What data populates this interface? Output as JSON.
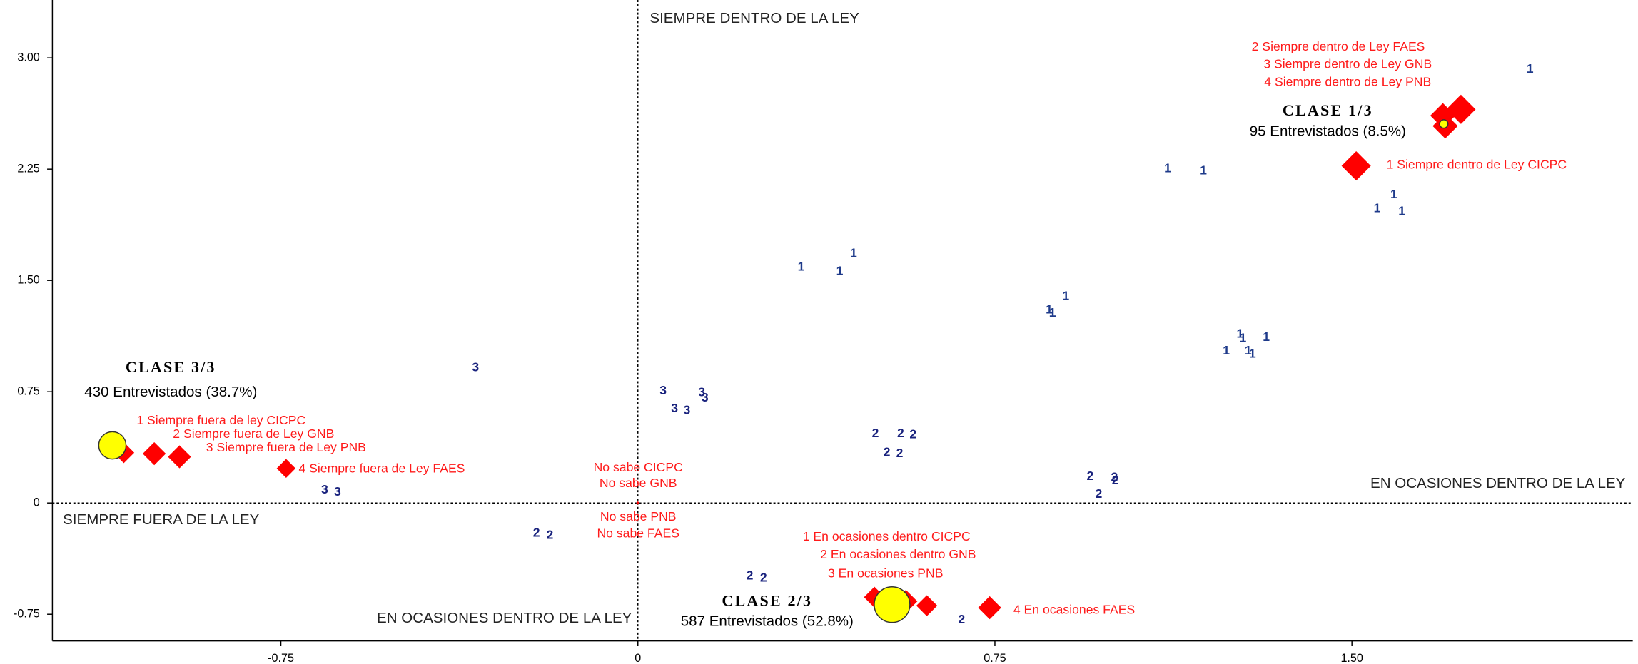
{
  "chart_data": {
    "type": "scatter",
    "xlim": [
      -1.23,
      2.09
    ],
    "ylim": [
      -0.93,
      3.39
    ],
    "xticks": [
      {
        "value": -0.75,
        "label": "-0.75"
      },
      0,
      {
        "value": 0.75,
        "label": "0.75"
      },
      {
        "value": 1.5,
        "label": "1.50"
      }
    ],
    "yticks": [
      {
        "value": -0.75,
        "label": "-0.75"
      },
      0,
      {
        "value": 0.75,
        "label": "0.75"
      },
      {
        "value": 1.5,
        "label": "1.50"
      },
      {
        "value": 2.25,
        "label": "2.25"
      },
      {
        "value": 3,
        "label": "3.00"
      }
    ],
    "quadrant_labels": [
      "SIEMPRE DENTRO DE LA LEY",
      "EN OCASIONES DENTRO DE LA LEY",
      "SIEMPRE FUERA DE LA LEY",
      "EN OCASIONES DENTRO DE LA LEY"
    ],
    "series": [
      {
        "name": "1",
        "color": "#1e3a8a",
        "x": [
          1.874,
          1.113,
          1.188,
          1.588,
          1.553,
          1.605,
          0.453,
          0.343,
          0.424,
          0.899,
          0.864,
          0.871,
          1.265,
          1.271,
          1.32,
          1.236,
          1.282,
          1.291
        ],
        "y": [
          2.922,
          2.251,
          2.237,
          2.075,
          1.983,
          1.962,
          1.68,
          1.588,
          1.56,
          1.39,
          1.299,
          1.277,
          1.136,
          1.108,
          1.115,
          1.023,
          1.023,
          1.002
        ]
      },
      {
        "name": "2",
        "color": "#1a237e",
        "x": [
          0.499,
          0.552,
          0.578,
          0.523,
          0.55,
          0.95,
          1.001,
          1.003,
          0.968,
          -0.213,
          -0.185,
          0.235,
          0.264,
          0.68
        ],
        "y": [
          0.466,
          0.466,
          0.459,
          0.339,
          0.332,
          0.176,
          0.169,
          0.148,
          0.056,
          -0.205,
          -0.219,
          -0.494,
          -0.508,
          -0.79
        ]
      },
      {
        "name": "3",
        "color": "#1a237e",
        "x": [
          -0.341,
          0.053,
          0.134,
          0.141,
          0.077,
          0.103,
          -0.658,
          -0.631
        ],
        "y": [
          0.91,
          0.755,
          0.741,
          0.706,
          0.635,
          0.621,
          0.085,
          0.071
        ]
      }
    ],
    "modalities": [
      {
        "label": "1 Siempre dentro de Ley CICPC",
        "x": 1.509,
        "y": 2.272
      },
      {
        "label": "2 Siempre dentro de Ley FAES",
        "x": 1.691,
        "y": 2.611
      },
      {
        "label": "3 Siempre dentro de Ley GNB",
        "x": 1.729,
        "y": 2.653
      },
      {
        "label": "4 Siempre dentro de Ley PNB",
        "x": 1.696,
        "y": 2.541
      },
      {
        "label": "1 Siempre fuera de ley CICPC",
        "x": -1.08,
        "y": 0.339
      },
      {
        "label": "2 Siempre fuera de Ley GNB",
        "x": -1.016,
        "y": 0.332
      },
      {
        "label": "3 Siempre fuera de Ley PNB",
        "x": -0.963,
        "y": 0.311
      },
      {
        "label": "4 Siempre fuera de Ley FAES",
        "x": -0.739,
        "y": 0.233
      },
      {
        "label": "No sabe CICPC",
        "x": 0,
        "y": 0
      },
      {
        "label": "No sabe GNB",
        "x": 0,
        "y": 0
      },
      {
        "label": "No sabe PNB",
        "x": 0,
        "y": 0
      },
      {
        "label": "No sabe FAES",
        "x": 0,
        "y": 0
      },
      {
        "label": "1 En ocasiones dentro CICPC",
        "x": 0.497,
        "y": -0.635
      },
      {
        "label": "2 En ocasiones dentro GNB",
        "x": 0.563,
        "y": -0.663
      },
      {
        "label": "3 En ocasiones PNB",
        "x": 0.607,
        "y": -0.692
      },
      {
        "label": "4 En ocasiones FAES",
        "x": 0.739,
        "y": -0.706
      }
    ],
    "classes": [
      {
        "name": "CLASE 1/3",
        "count": "95 Entrevistados (8.5%)",
        "x": 1.693,
        "y": 2.555
      },
      {
        "name": "CLASE 2/3",
        "count": "587 Entrevistados (52.8%)",
        "x": 0.534,
        "y": -0.685
      },
      {
        "name": "CLASE 3/3",
        "count": "430 Entrevistados (38.7%)",
        "x": -1.104,
        "y": 0.388
      }
    ]
  }
}
